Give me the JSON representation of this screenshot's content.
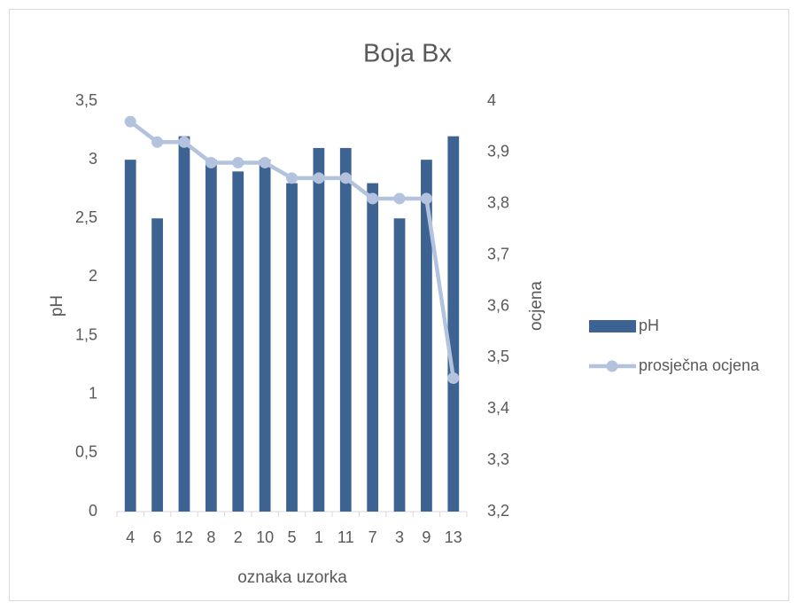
{
  "chart_data": {
    "type": "bar",
    "title": "Boja Bx",
    "x_label": "oznaka uzorka",
    "y_label": "pH",
    "y2_label": "ocjena",
    "categories": [
      "4",
      "6",
      "12",
      "8",
      "2",
      "10",
      "5",
      "1",
      "11",
      "7",
      "3",
      "9",
      "13"
    ],
    "series": [
      {
        "name": "pH",
        "type": "bar",
        "color": "#3c6391",
        "values": [
          3,
          2.5,
          3.2,
          3.0,
          2.9,
          3.0,
          2.8,
          3.1,
          3.1,
          2.8,
          2.5,
          3.0,
          3.2
        ]
      },
      {
        "name": "prosječna ocjena",
        "type": "line",
        "axis": "y2",
        "color": "#b4c3dd",
        "values": [
          3.96,
          3.92,
          3.92,
          3.88,
          3.88,
          3.88,
          3.85,
          3.85,
          3.85,
          3.81,
          3.81,
          3.81,
          3.46
        ]
      }
    ],
    "ylim": [
      0,
      3.5
    ],
    "yticks": [
      0,
      {
        "value": 0.5,
        "label": "0,5"
      },
      1,
      {
        "value": 1.5,
        "label": "1,5"
      },
      2,
      {
        "value": 2.5,
        "label": "2,5"
      },
      3,
      {
        "value": 3.5,
        "label": "3,5"
      }
    ],
    "y2lim": [
      3.2,
      4
    ],
    "y2ticks": [
      {
        "value": 3.2,
        "label": "3,2"
      },
      {
        "value": 3.3,
        "label": "3,3"
      },
      {
        "value": 3.4,
        "label": "3,4"
      },
      {
        "value": 3.5,
        "label": "3,5"
      },
      {
        "value": 3.6,
        "label": "3,6"
      },
      {
        "value": 3.7,
        "label": "3,7"
      },
      {
        "value": 3.8,
        "label": "3,8"
      },
      {
        "value": 3.9,
        "label": "3,9"
      },
      4
    ],
    "grid": false,
    "legend": "right"
  }
}
